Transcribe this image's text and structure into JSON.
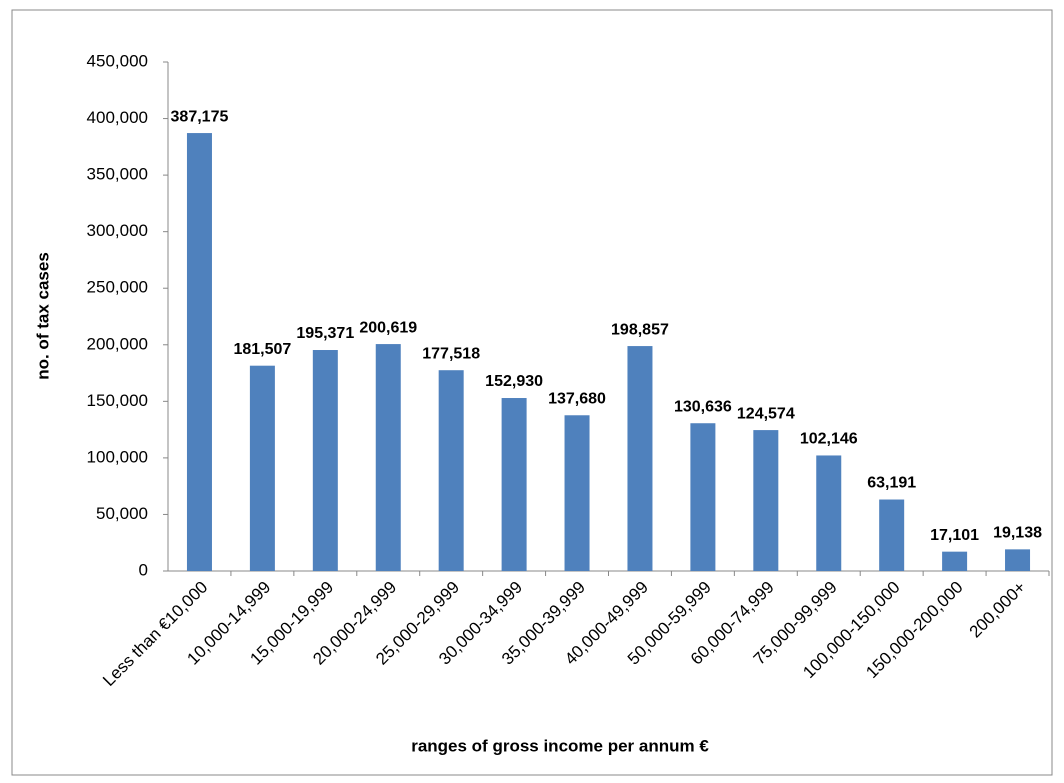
{
  "chart_data": {
    "type": "bar",
    "x_label": "ranges of gross income per annum €",
    "y_label": "no. of tax cases",
    "categories": [
      "Less than €10,000",
      "10,000-14,999",
      "15,000-19,999",
      "20,000-24,999",
      "25,000-29,999",
      "30,000-34,999",
      "35,000-39,999",
      "40,000-49,999",
      "50,000-59,999",
      "60,000-74,999",
      "75,000-99,999",
      "100,000-150,000",
      "150,000-200,000",
      "200,000+"
    ],
    "values": [
      387175,
      181507,
      195371,
      200619,
      177518,
      152930,
      137680,
      198857,
      130636,
      124574,
      102146,
      63191,
      17101,
      19138
    ],
    "value_labels": [
      "387,175",
      "181,507",
      "195,371",
      "200,619",
      "177,518",
      "152,930",
      "137,680",
      "198,857",
      "130,636",
      "124,574",
      "102,146",
      "63,191",
      "17,101",
      "19,138"
    ],
    "color": "#4f81bd",
    "ylim": [
      0,
      450000
    ],
    "yticks": [
      0,
      {
        "value": 50000,
        "label": "50,000"
      },
      {
        "value": 100000,
        "label": "100,000"
      },
      {
        "value": 150000,
        "label": "150,000"
      },
      {
        "value": 200000,
        "label": "200,000"
      },
      {
        "value": 250000,
        "label": "250,000"
      },
      {
        "value": 300000,
        "label": "300,000"
      },
      {
        "value": 350000,
        "label": "350,000"
      },
      {
        "value": 400000,
        "label": "400,000"
      },
      {
        "value": 450000,
        "label": "450,000"
      }
    ],
    "grid": false
  }
}
